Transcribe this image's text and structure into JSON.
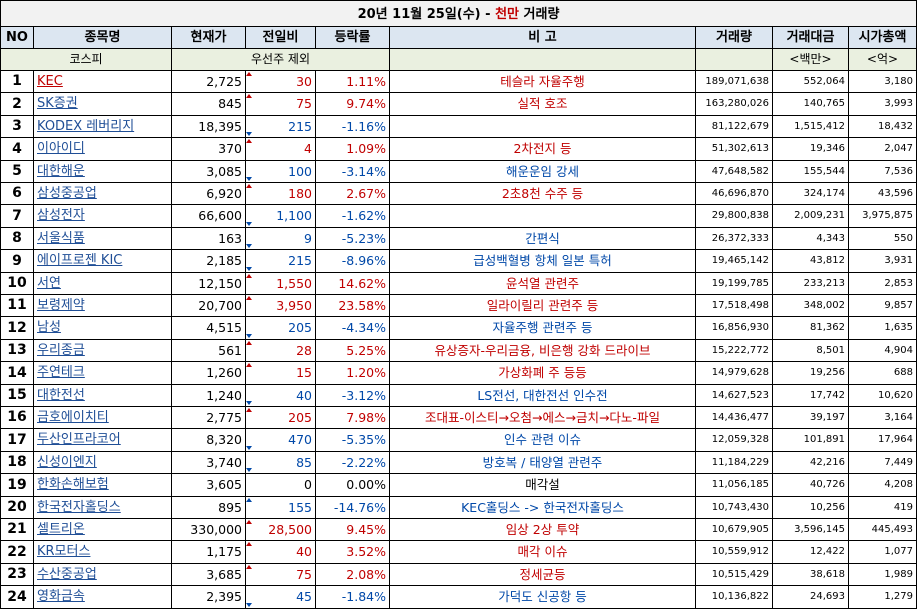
{
  "title": {
    "prefix": "20년 11월 25일(수) - ",
    "unit": "천만",
    "suffix": " 거래량"
  },
  "headers": [
    "NO",
    "종목명",
    "현재가",
    "전일비",
    "등락률",
    "비 고",
    "거래량",
    "거래대금",
    "시가총액"
  ],
  "subheader": {
    "market": "코스피",
    "note": "우선주 제외",
    "amount_unit": "<백만>",
    "cap_unit": "<억>"
  },
  "colors": {
    "up": "#c00000",
    "down": "#0048a8",
    "header_bg": "#dce6f1"
  },
  "rows": [
    {
      "no": "1",
      "name": "KEC",
      "price": "2,725",
      "change": "30",
      "rate": "1.11%",
      "note": "테슬라 자율주행",
      "volume": "189,071,638",
      "amount": "552,064",
      "cap": "3,180",
      "dir": "up",
      "note_color": "up"
    },
    {
      "no": "2",
      "name": "SK증권",
      "price": "845",
      "change": "75",
      "rate": "9.74%",
      "note": "실적 호조",
      "volume": "163,280,026",
      "amount": "140,765",
      "cap": "3,993",
      "dir": "up",
      "note_color": "up"
    },
    {
      "no": "3",
      "name": "KODEX 레버리지",
      "price": "18,395",
      "change": "215",
      "rate": "-1.16%",
      "note": "",
      "volume": "81,122,679",
      "amount": "1,515,412",
      "cap": "18,432",
      "dir": "down",
      "note_color": "down"
    },
    {
      "no": "4",
      "name": "이아이디",
      "price": "370",
      "change": "4",
      "rate": "1.09%",
      "note": "2차전지 등",
      "volume": "51,302,613",
      "amount": "19,346",
      "cap": "2,047",
      "dir": "up",
      "note_color": "up"
    },
    {
      "no": "5",
      "name": "대한해운",
      "price": "3,085",
      "change": "100",
      "rate": "-3.14%",
      "note": "해운운임 강세",
      "volume": "47,648,582",
      "amount": "155,544",
      "cap": "7,536",
      "dir": "down",
      "note_color": "down"
    },
    {
      "no": "6",
      "name": "삼성중공업",
      "price": "6,920",
      "change": "180",
      "rate": "2.67%",
      "note": "2초8천 수주 등",
      "volume": "46,696,870",
      "amount": "324,174",
      "cap": "43,596",
      "dir": "up",
      "note_color": "up"
    },
    {
      "no": "7",
      "name": "삼성전자",
      "price": "66,600",
      "change": "1,100",
      "rate": "-1.62%",
      "note": "",
      "volume": "29,800,838",
      "amount": "2,009,231",
      "cap": "3,975,875",
      "dir": "down",
      "note_color": "down"
    },
    {
      "no": "8",
      "name": "서울식품",
      "price": "163",
      "change": "9",
      "rate": "-5.23%",
      "note": "간편식",
      "volume": "26,372,333",
      "amount": "4,343",
      "cap": "550",
      "dir": "down",
      "note_color": "down"
    },
    {
      "no": "9",
      "name": "에이프로젠 KIC",
      "price": "2,185",
      "change": "215",
      "rate": "-8.96%",
      "note": "급성백혈병 항체 일본 특허",
      "volume": "19,465,142",
      "amount": "43,812",
      "cap": "3,931",
      "dir": "down",
      "note_color": "down"
    },
    {
      "no": "10",
      "name": "서연",
      "price": "12,150",
      "change": "1,550",
      "rate": "14.62%",
      "note": "윤석열 관련주",
      "volume": "19,199,785",
      "amount": "233,213",
      "cap": "2,853",
      "dir": "up",
      "note_color": "up"
    },
    {
      "no": "11",
      "name": "보령제약",
      "price": "20,700",
      "change": "3,950",
      "rate": "23.58%",
      "note": "일라이릴리 관련주 등",
      "volume": "17,518,498",
      "amount": "348,002",
      "cap": "9,857",
      "dir": "up",
      "note_color": "up"
    },
    {
      "no": "12",
      "name": "남성",
      "price": "4,515",
      "change": "205",
      "rate": "-4.34%",
      "note": "자율주행 관련주 등",
      "volume": "16,856,930",
      "amount": "81,362",
      "cap": "1,635",
      "dir": "down",
      "note_color": "down"
    },
    {
      "no": "13",
      "name": "우리종금",
      "price": "561",
      "change": "28",
      "rate": "5.25%",
      "note": "유상증자-우리금융, 비은행 강화 드라이브",
      "volume": "15,222,772",
      "amount": "8,501",
      "cap": "4,904",
      "dir": "up",
      "note_color": "up"
    },
    {
      "no": "14",
      "name": "주연테크",
      "price": "1,260",
      "change": "15",
      "rate": "1.20%",
      "note": "가상화폐 주 등등",
      "volume": "14,979,628",
      "amount": "19,256",
      "cap": "688",
      "dir": "up",
      "note_color": "up"
    },
    {
      "no": "15",
      "name": "대한전선",
      "price": "1,240",
      "change": "40",
      "rate": "-3.12%",
      "note": "LS전선, 대한전선 인수전",
      "volume": "14,627,523",
      "amount": "17,742",
      "cap": "10,620",
      "dir": "down",
      "note_color": "down"
    },
    {
      "no": "16",
      "name": "금호에이치티",
      "price": "2,775",
      "change": "205",
      "rate": "7.98%",
      "note": "조대표-이스티→오첨→에스→금치→다노-파일",
      "volume": "14,436,477",
      "amount": "39,197",
      "cap": "3,164",
      "dir": "up",
      "note_color": "up"
    },
    {
      "no": "17",
      "name": "두산인프라코어",
      "price": "8,320",
      "change": "470",
      "rate": "-5.35%",
      "note": "인수 관련 이슈",
      "volume": "12,059,328",
      "amount": "101,891",
      "cap": "17,964",
      "dir": "down",
      "note_color": "down"
    },
    {
      "no": "18",
      "name": "신성이엔지",
      "price": "3,740",
      "change": "85",
      "rate": "-2.22%",
      "note": "방호복 / 태양열 관련주",
      "volume": "11,184,229",
      "amount": "42,216",
      "cap": "7,449",
      "dir": "down",
      "note_color": "down"
    },
    {
      "no": "19",
      "name": "한화손해보험",
      "price": "3,605",
      "change": "0",
      "rate": "0.00%",
      "note": "매각설",
      "volume": "11,056,185",
      "amount": "40,726",
      "cap": "4,208",
      "dir": "flat",
      "note_color": "flat"
    },
    {
      "no": "20",
      "name": "한국전자홀딩스",
      "price": "895",
      "change": "155",
      "rate": "-14.76%",
      "note": "KEC홀딩스 -> 한국전자홀딩스",
      "volume": "10,743,430",
      "amount": "10,256",
      "cap": "419",
      "dir": "down2",
      "note_color": "down"
    },
    {
      "no": "21",
      "name": "셀트리온",
      "price": "330,000",
      "change": "28,500",
      "rate": "9.45%",
      "note": "임상 2상 투약",
      "volume": "10,679,905",
      "amount": "3,596,145",
      "cap": "445,493",
      "dir": "up",
      "note_color": "up"
    },
    {
      "no": "22",
      "name": "KR모터스",
      "price": "1,175",
      "change": "40",
      "rate": "3.52%",
      "note": "매각 이슈",
      "volume": "10,559,912",
      "amount": "12,422",
      "cap": "1,077",
      "dir": "up",
      "note_color": "up"
    },
    {
      "no": "23",
      "name": "수산중공업",
      "price": "3,685",
      "change": "75",
      "rate": "2.08%",
      "note": "정세균등",
      "volume": "10,515,429",
      "amount": "38,618",
      "cap": "1,989",
      "dir": "up",
      "note_color": "up"
    },
    {
      "no": "24",
      "name": "영화금속",
      "price": "2,395",
      "change": "45",
      "rate": "-1.84%",
      "note": "가덕도 신공항 등",
      "volume": "10,136,822",
      "amount": "24,693",
      "cap": "1,279",
      "dir": "down",
      "note_color": "down"
    }
  ]
}
